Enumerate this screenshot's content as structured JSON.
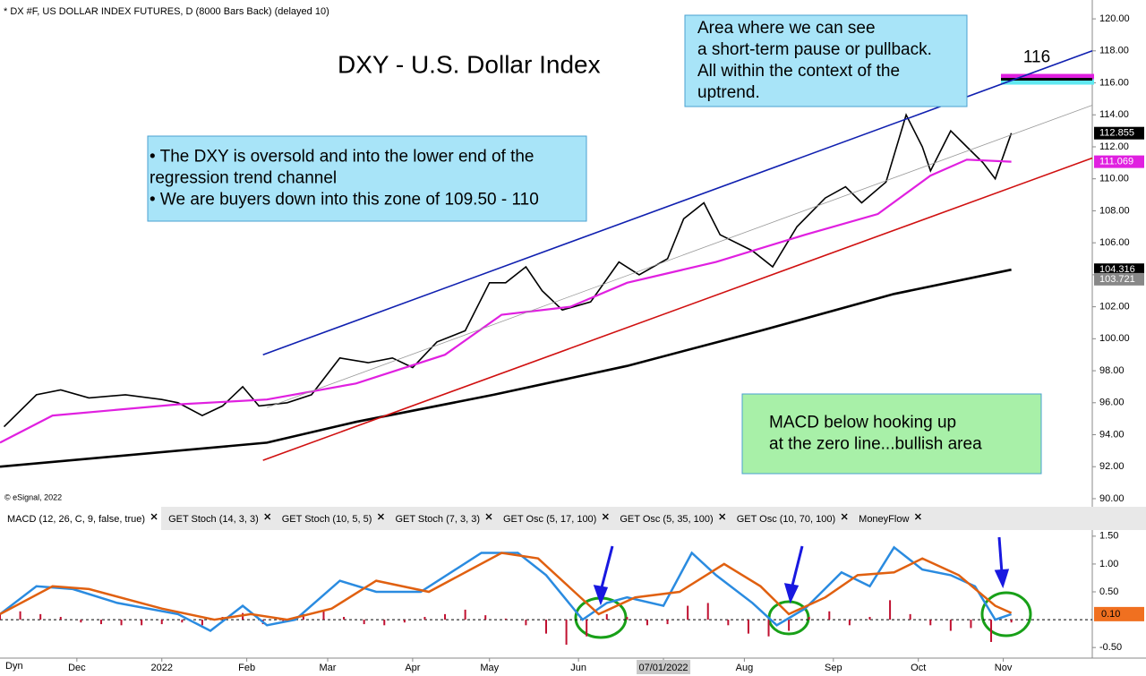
{
  "chart_data": [
    {
      "type": "line",
      "header": "* DX #F, US DOLLAR INDEX FUTURES, D (8000 Bars Back) (delayed 10)",
      "title": "DXY - U.S. Dollar Index",
      "copyright": "© eSignal, 2022",
      "xlim": [
        0,
        270
      ],
      "xticks": [
        {
          "value": 19,
          "label": "Dec"
        },
        {
          "value": 40,
          "label": "2022"
        },
        {
          "value": 61,
          "label": "Feb"
        },
        {
          "value": 81,
          "label": "Mar"
        },
        {
          "value": 102,
          "label": "Apr"
        },
        {
          "value": 121,
          "label": "May"
        },
        {
          "value": 143,
          "label": "Jun"
        },
        {
          "value": 164,
          "label": "07/01/2022"
        },
        {
          "value": 184,
          "label": "Aug"
        },
        {
          "value": 206,
          "label": "Sep"
        },
        {
          "value": 227,
          "label": "Oct"
        },
        {
          "value": 248,
          "label": "Nov"
        }
      ],
      "ylim": [
        89.55,
        121.18
      ],
      "yticks": [
        {
          "value": 90,
          "label": "90.00"
        },
        {
          "value": 92,
          "label": "92.00"
        },
        {
          "value": 94,
          "label": "94.00"
        },
        {
          "value": 96,
          "label": "96.00"
        },
        {
          "value": 98,
          "label": "98.00"
        },
        {
          "value": 100,
          "label": "100.00"
        },
        {
          "value": 102,
          "label": "102.00"
        },
        {
          "value": 104,
          "label": "104.00"
        },
        {
          "value": 106,
          "label": "106.00"
        },
        {
          "value": 108,
          "label": "108.00"
        },
        {
          "value": 110,
          "label": "110.00"
        },
        {
          "value": 112,
          "label": "112.00"
        },
        {
          "value": 114,
          "label": "114.00"
        },
        {
          "value": 116,
          "label": "116.00"
        },
        {
          "value": 118,
          "label": "118.00"
        },
        {
          "value": 120,
          "label": "120.00"
        }
      ],
      "series": [
        {
          "color": "#000000",
          "width": 1.6,
          "tag": "#000000",
          "x": [
            1,
            9,
            15,
            22,
            31,
            40,
            44,
            50,
            55,
            60,
            64,
            71,
            77,
            84,
            91,
            97,
            102,
            108,
            115,
            121,
            125,
            130,
            134,
            139,
            146,
            153,
            158,
            165,
            169,
            174,
            178,
            186,
            191,
            197,
            204,
            209,
            213,
            219,
            224,
            228,
            230,
            235,
            239,
            243,
            246,
            250
          ],
          "values": [
            94.5,
            96.5,
            96.8,
            96.3,
            96.5,
            96.2,
            96,
            95.2,
            95.8,
            97,
            95.8,
            96,
            96.5,
            98.8,
            98.5,
            98.8,
            98.2,
            99.8,
            100.5,
            103.5,
            103.5,
            104.5,
            103,
            101.8,
            102.3,
            104.8,
            104,
            105,
            107.5,
            108.5,
            106.5,
            105.5,
            104.5,
            107,
            108.8,
            109.5,
            108.5,
            109.8,
            114,
            112,
            110.5,
            113,
            112,
            111,
            110,
            112.855
          ]
        },
        {
          "color": "#e020e0",
          "width": 2.2,
          "tag": "#e020e0",
          "x": [
            0,
            13,
            44,
            66,
            88,
            110,
            124,
            141,
            155,
            177,
            199,
            217,
            230,
            239,
            250
          ],
          "values": [
            93.5,
            95.2,
            95.9,
            96.2,
            97.2,
            99,
            101.5,
            102,
            103.5,
            104.8,
            106.5,
            107.8,
            110.2,
            111.2,
            111.069
          ]
        },
        {
          "color": "#000000",
          "width": 2.6,
          "tag": "#000000",
          "x": [
            0,
            66,
            88,
            122,
            155,
            188,
            221,
            250
          ],
          "values": [
            92,
            93.5,
            94.8,
            96.5,
            98.3,
            100.5,
            102.8,
            104.316
          ]
        },
        {
          "color": "#1020b0",
          "width": 1.6,
          "x": [
            65,
            270
          ],
          "values": [
            99,
            118
          ]
        },
        {
          "color": "#d01010",
          "width": 1.6,
          "x": [
            65,
            270
          ],
          "values": [
            92.4,
            111.3
          ]
        },
        {
          "color": "#999999",
          "width": 0.8,
          "x": [
            66,
            270
          ],
          "values": [
            95.7,
            114.6
          ]
        }
      ],
      "price_markers": [
        103.721
      ],
      "level": {
        "label": "116",
        "value": 116
      },
      "notes": [
        {
          "lines": [
            "• The DXY is oversold and into the lower end of the",
            "   regression trend channel",
            "• We are buyers down into this zone of 109.50 - 110"
          ],
          "color": "#a8e4f8"
        },
        {
          "lines": [
            "Area where we can see",
            "a short-term pause or pullback.",
            "All within the context of the",
            "uptrend."
          ],
          "color": "#a8e4f8"
        },
        {
          "lines": [
            "MACD below hooking up",
            "at the zero line...bullish area"
          ],
          "color": "#a8f0a8"
        }
      ]
    },
    {
      "type": "macd",
      "tabs": [
        "MACD (12, 26, C, 9, false, true)",
        "GET Stoch (14, 3, 3)",
        "GET Stoch (10, 5, 5)",
        "GET Stoch (7, 3, 3)",
        "GET Osc (5, 17, 100)",
        "GET Osc (5, 35, 100)",
        "GET Osc (10, 70, 100)",
        "MoneyFlow"
      ],
      "corner": "Dyn",
      "ylim": [
        -0.69,
        1.61
      ],
      "yticks": [
        {
          "value": 1.5,
          "label": "1.50"
        },
        {
          "value": 1,
          "label": "1.00"
        },
        {
          "value": 0.5,
          "label": "0.50"
        },
        {
          "value": -0.5,
          "label": "-0.50"
        }
      ],
      "series": [
        {
          "color": "#2a8be0",
          "x": [
            0,
            9,
            18,
            29,
            44,
            52,
            60,
            66,
            73,
            84,
            93,
            104,
            119,
            128,
            135,
            144,
            150,
            155,
            164,
            171,
            177,
            186,
            192,
            199,
            208,
            215,
            221,
            228,
            235,
            241,
            246,
            250
          ],
          "values": [
            0.1,
            0.6,
            0.55,
            0.3,
            0.1,
            -0.2,
            0.25,
            -0.1,
            0,
            0.7,
            0.5,
            0.5,
            1.2,
            1.2,
            0.8,
            0,
            0.3,
            0.4,
            0.25,
            1.2,
            0.8,
            0.3,
            -0.1,
            0.2,
            0.85,
            0.6,
            1.3,
            0.9,
            0.8,
            0.6,
            0,
            0.1
          ],
          "value_labels": {
            "31": "0.10"
          }
        },
        {
          "color": "#e06010",
          "x": [
            0,
            13,
            22,
            40,
            53,
            62,
            71,
            82,
            93,
            106,
            124,
            133,
            142,
            148,
            157,
            168,
            179,
            188,
            195,
            204,
            212,
            221,
            228,
            237,
            246,
            250
          ],
          "values": [
            0.1,
            0.6,
            0.55,
            0.2,
            0,
            0.1,
            0,
            0.2,
            0.7,
            0.5,
            1.2,
            1.1,
            0.5,
            0.1,
            0.4,
            0.5,
            1.0,
            0.6,
            0.1,
            0.4,
            0.8,
            0.85,
            1.1,
            0.8,
            0.25,
            0.12
          ]
        }
      ],
      "histogram": {
        "color": "#c01030",
        "step": 5,
        "values": [
          0.12,
          0.15,
          0.1,
          0.05,
          -0.05,
          -0.08,
          -0.1,
          -0.1,
          -0.08,
          -0.05,
          -0.1,
          0.05,
          0.12,
          -0.08,
          -0.05,
          0.1,
          0.15,
          0.05,
          -0.08,
          -0.1,
          -0.05,
          0.05,
          0.1,
          0.18,
          0.08,
          0.02,
          -0.1,
          -0.25,
          -0.45,
          -0.3,
          0.1,
          0.05,
          -0.1,
          -0.08,
          0.25,
          0.3,
          -0.1,
          -0.25,
          -0.3,
          -0.2,
          0.05,
          0.15,
          -0.1,
          0.05,
          0.35,
          0.1,
          -0.1,
          -0.2,
          -0.15,
          -0.4,
          -0.05
        ]
      }
    }
  ]
}
